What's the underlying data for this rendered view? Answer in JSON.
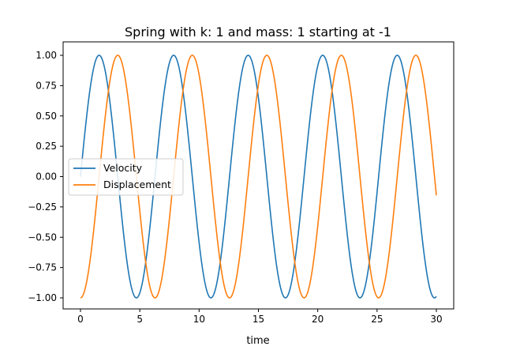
{
  "chart_data": {
    "type": "line",
    "title": "Spring with k: 1 and mass: 1 starting at -1",
    "xlabel": "time",
    "ylabel": "",
    "xlim": [
      0,
      30
    ],
    "ylim": [
      -1.0,
      1.0
    ],
    "x_ticks": [
      0,
      5,
      10,
      15,
      20,
      25,
      30
    ],
    "x_tick_labels": [
      "0",
      "5",
      "10",
      "15",
      "20",
      "25",
      "30"
    ],
    "y_ticks": [
      -1.0,
      -0.75,
      -0.5,
      -0.25,
      0.0,
      0.25,
      0.5,
      0.75,
      1.0
    ],
    "y_tick_labels": [
      "−1.00",
      "−0.75",
      "−0.50",
      "−0.25",
      "0.00",
      "0.25",
      "0.50",
      "0.75",
      "1.00"
    ],
    "grid": false,
    "legend_position": "center-left",
    "series": [
      {
        "name": "Velocity",
        "color": "#1f77b4",
        "function": "sin(t)",
        "x": [
          0,
          1.571,
          3.142,
          4.712,
          6.283,
          7.854,
          9.425,
          10.996,
          12.566,
          14.137,
          15.708,
          17.279,
          18.85,
          20.42,
          21.991,
          23.562,
          25.133,
          26.704,
          28.274,
          29.845,
          30
        ],
        "values": [
          0,
          1,
          0,
          -1,
          0,
          1,
          0,
          -1,
          0,
          1,
          0,
          -1,
          0,
          1,
          0,
          -1,
          0,
          1,
          0,
          -1,
          -0.988
        ]
      },
      {
        "name": "Displacement",
        "color": "#ff7f0e",
        "function": "-cos(t)",
        "x": [
          0,
          1.571,
          3.142,
          4.712,
          6.283,
          7.854,
          9.425,
          10.996,
          12.566,
          14.137,
          15.708,
          17.279,
          18.85,
          20.42,
          21.991,
          23.562,
          25.133,
          26.704,
          28.274,
          29.845,
          30
        ],
        "values": [
          -1,
          0,
          1,
          0,
          -1,
          0,
          1,
          0,
          -1,
          0,
          1,
          0,
          -1,
          0,
          1,
          0,
          -1,
          0,
          1,
          0,
          -0.154
        ]
      }
    ]
  }
}
